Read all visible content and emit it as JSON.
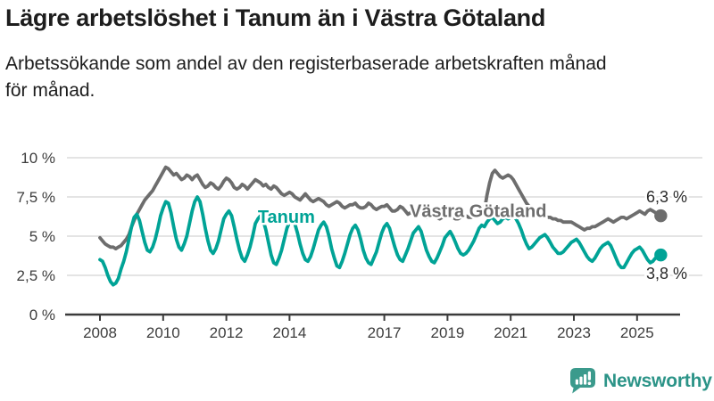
{
  "chart_data": {
    "type": "line",
    "title": "Lägre arbetslöshet i Tanum än i Västra Götaland",
    "subtitle": "Arbetssökande som andel av den registerbaserade arbetskraften månad för månad.",
    "subtitle_lines": [
      "Arbetssökande som andel av den registerbaserade arbetskraften månad",
      "för månad."
    ],
    "frequency": "monthly",
    "x_start_year": 2008,
    "x_start": "2008-01",
    "x_end": "2025-10",
    "ylim": [
      0,
      10.5
    ],
    "grid": "horizontal",
    "legend": "inline-labels",
    "yticks": [
      {
        "v": 0,
        "label": "0 %"
      },
      {
        "v": 2.5,
        "label": "2,5 %"
      },
      {
        "v": 5,
        "label": "5 %"
      },
      {
        "v": 7.5,
        "label": "7,5 %"
      },
      {
        "v": 10,
        "label": "10 %"
      }
    ],
    "xticks": [
      {
        "t": 2008,
        "label": "2008"
      },
      {
        "t": 2010,
        "label": "2010"
      },
      {
        "t": 2012,
        "label": "2012"
      },
      {
        "t": 2014,
        "label": "2014"
      },
      {
        "t": 2017,
        "label": "2017"
      },
      {
        "t": 2019,
        "label": "2019"
      },
      {
        "t": 2021,
        "label": "2021"
      },
      {
        "t": 2023,
        "label": "2023"
      },
      {
        "t": 2025,
        "label": "2025"
      }
    ],
    "series": [
      {
        "id": "vastra-gotaland",
        "name": "Västra Götaland",
        "color": "#6d6d6d",
        "end_label": "6,3 %",
        "end_label_side": "above",
        "last_value": 6.3,
        "label_pos": {
          "t": 2019.97,
          "v": 6.55
        },
        "values": [
          4.9,
          4.7,
          4.5,
          4.4,
          4.3,
          4.3,
          4.2,
          4.3,
          4.4,
          4.6,
          4.8,
          5.1,
          5.6,
          6.0,
          6.4,
          6.7,
          7.0,
          7.3,
          7.5,
          7.7,
          7.9,
          8.2,
          8.5,
          8.8,
          9.1,
          9.4,
          9.3,
          9.1,
          8.9,
          9.0,
          8.8,
          8.6,
          8.7,
          8.9,
          8.8,
          8.6,
          8.8,
          8.9,
          8.6,
          8.3,
          8.1,
          8.2,
          8.4,
          8.3,
          8.1,
          8.0,
          8.2,
          8.5,
          8.7,
          8.6,
          8.4,
          8.1,
          8.0,
          8.1,
          8.3,
          8.2,
          8.0,
          8.2,
          8.4,
          8.6,
          8.5,
          8.4,
          8.2,
          8.3,
          8.1,
          8.0,
          8.2,
          8.1,
          7.9,
          7.7,
          7.6,
          7.7,
          7.8,
          7.7,
          7.5,
          7.4,
          7.3,
          7.5,
          7.7,
          7.5,
          7.3,
          7.2,
          7.3,
          7.4,
          7.3,
          7.2,
          7.0,
          6.9,
          7.0,
          7.1,
          7.2,
          7.1,
          6.9,
          6.8,
          6.9,
          7.0,
          7.0,
          7.1,
          6.9,
          6.8,
          6.8,
          6.9,
          7.1,
          7.0,
          6.8,
          6.7,
          6.8,
          6.9,
          6.9,
          7.0,
          6.8,
          6.6,
          6.6,
          6.7,
          6.9,
          6.8,
          6.6,
          6.4,
          6.5,
          6.6,
          6.6,
          6.6,
          6.4,
          6.3,
          6.2,
          6.4,
          6.5,
          6.4,
          6.2,
          6.1,
          6.2,
          6.3,
          6.4,
          6.4,
          6.2,
          6.1,
          6.1,
          6.2,
          6.4,
          6.3,
          6.2,
          6.2,
          6.3,
          6.4,
          6.4,
          6.4,
          6.6,
          7.6,
          8.4,
          9.0,
          9.2,
          9.0,
          8.8,
          8.7,
          8.8,
          8.9,
          8.8,
          8.6,
          8.3,
          8.0,
          7.7,
          7.4,
          7.1,
          6.9,
          6.7,
          6.5,
          6.4,
          6.3,
          6.3,
          6.3,
          6.2,
          6.2,
          6.1,
          6.1,
          6.0,
          6.0,
          5.9,
          5.9,
          5.9,
          5.9,
          5.8,
          5.7,
          5.6,
          5.5,
          5.4,
          5.5,
          5.5,
          5.6,
          5.6,
          5.7,
          5.8,
          5.9,
          6.0,
          6.1,
          6.0,
          5.9,
          6.0,
          6.1,
          6.2,
          6.2,
          6.1,
          6.2,
          6.3,
          6.4,
          6.5,
          6.6,
          6.5,
          6.4,
          6.6,
          6.7,
          6.6,
          6.5,
          6.4,
          6.3
        ]
      },
      {
        "id": "tanum",
        "name": "Tanum",
        "color": "#00a396",
        "end_label": "3,8 %",
        "end_label_side": "below",
        "last_value": 3.8,
        "label_pos": {
          "t": 2013.9,
          "v": 6.2
        },
        "values": [
          3.5,
          3.4,
          3.0,
          2.5,
          2.1,
          1.9,
          2.0,
          2.3,
          2.9,
          3.4,
          4.0,
          4.8,
          5.6,
          6.2,
          6.4,
          6.0,
          5.3,
          4.6,
          4.1,
          4.0,
          4.3,
          4.8,
          5.5,
          6.3,
          6.8,
          7.2,
          7.1,
          6.5,
          5.6,
          4.8,
          4.3,
          4.1,
          4.5,
          5.0,
          5.8,
          6.6,
          7.2,
          7.5,
          7.2,
          6.4,
          5.5,
          4.7,
          4.1,
          3.9,
          4.2,
          4.7,
          5.4,
          6.1,
          6.4,
          6.6,
          6.3,
          5.6,
          4.8,
          4.1,
          3.6,
          3.4,
          3.8,
          4.3,
          5.0,
          5.8,
          6.1,
          6.3,
          6.0,
          5.4,
          4.6,
          3.8,
          3.3,
          3.2,
          3.6,
          4.1,
          4.8,
          5.5,
          5.9,
          6.1,
          5.8,
          5.2,
          4.5,
          3.9,
          3.5,
          3.4,
          3.7,
          4.2,
          4.8,
          5.4,
          5.7,
          5.9,
          5.6,
          5.0,
          4.2,
          3.6,
          3.1,
          3.0,
          3.4,
          3.9,
          4.5,
          5.1,
          5.5,
          5.7,
          5.4,
          4.8,
          4.1,
          3.6,
          3.3,
          3.2,
          3.6,
          4.0,
          4.6,
          5.2,
          5.6,
          5.8,
          5.5,
          4.9,
          4.3,
          3.8,
          3.5,
          3.4,
          3.8,
          4.2,
          4.7,
          5.2,
          5.4,
          5.6,
          5.3,
          4.7,
          4.1,
          3.7,
          3.4,
          3.3,
          3.6,
          4.0,
          4.4,
          4.9,
          5.1,
          5.3,
          5.0,
          4.6,
          4.2,
          3.9,
          3.8,
          3.9,
          4.1,
          4.4,
          4.7,
          5.1,
          5.5,
          5.7,
          5.6,
          5.9,
          6.1,
          6.2,
          6.0,
          5.8,
          5.9,
          6.1,
          6.2,
          6.1,
          6.2,
          6.3,
          6.1,
          5.8,
          5.4,
          4.9,
          4.5,
          4.2,
          4.3,
          4.5,
          4.7,
          4.9,
          5.0,
          5.1,
          4.9,
          4.6,
          4.3,
          4.1,
          3.9,
          3.9,
          4.0,
          4.2,
          4.4,
          4.6,
          4.7,
          4.8,
          4.6,
          4.3,
          4.0,
          3.7,
          3.5,
          3.4,
          3.6,
          3.9,
          4.2,
          4.4,
          4.5,
          4.6,
          4.4,
          4.0,
          3.6,
          3.2,
          3.0,
          3.0,
          3.3,
          3.6,
          3.9,
          4.1,
          4.2,
          4.3,
          4.1,
          3.8,
          3.5,
          3.3,
          3.4,
          3.6,
          3.7,
          3.8
        ]
      }
    ]
  },
  "colors": {
    "grid": "#dcdcdc",
    "axis": "#3b3b3b",
    "tick_text": "#3d3d3d",
    "end_label_text": "#2a2a2a",
    "title_text": "#1d1d1d"
  },
  "footer": {
    "brand": "Newsworthy",
    "brand_color": "#2c9488",
    "icon": "newsworthy-speech-bubble-bar-chart-icon",
    "icon_color": "#3b9a8c"
  }
}
